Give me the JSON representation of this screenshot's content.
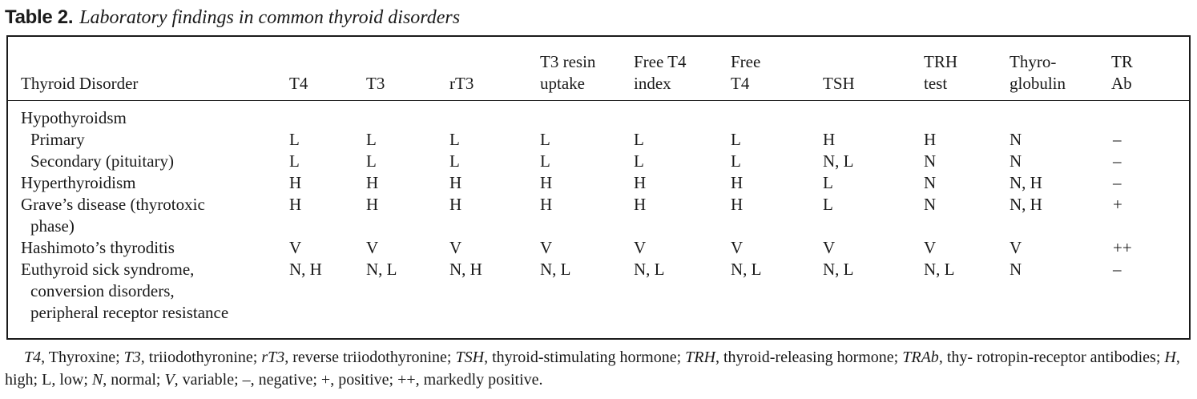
{
  "table": {
    "label": "Table 2.",
    "caption": "Laboratory findings in common thyroid disorders",
    "columns": [
      {
        "line1": "Thyroid Disorder",
        "line2": ""
      },
      {
        "line1": "T4",
        "line2": ""
      },
      {
        "line1": "T3",
        "line2": ""
      },
      {
        "line1": "rT3",
        "line2": ""
      },
      {
        "line1": "T3 resin",
        "line2": "uptake"
      },
      {
        "line1": "Free T4",
        "line2": "index"
      },
      {
        "line1": "Free",
        "line2": "T4"
      },
      {
        "line1": "TSH",
        "line2": ""
      },
      {
        "line1": "TRH",
        "line2": "test"
      },
      {
        "line1": "Thyro-",
        "line2": "globulin"
      },
      {
        "line1": "TR",
        "line2": "Ab"
      }
    ],
    "rows": [
      {
        "label": [
          "Hypothyroidsm"
        ],
        "values": [
          "",
          "",
          "",
          "",
          "",
          "",
          "",
          "",
          "",
          ""
        ]
      },
      {
        "label": [
          "Primary"
        ],
        "indent": true,
        "values": [
          "L",
          "L",
          "L",
          "L",
          "L",
          "L",
          "H",
          "H",
          "N",
          "–"
        ]
      },
      {
        "label": [
          "Secondary (pituitary)"
        ],
        "indent": true,
        "values": [
          "L",
          "L",
          "L",
          "L",
          "L",
          "L",
          "N, L",
          "N",
          "N",
          "–"
        ]
      },
      {
        "label": [
          "Hyperthyroidism"
        ],
        "values": [
          "H",
          "H",
          "H",
          "H",
          "H",
          "H",
          "L",
          "N",
          "N, H",
          "–"
        ]
      },
      {
        "label": [
          "Grave’s disease (thyrotoxic",
          "phase)"
        ],
        "values": [
          "H",
          "H",
          "H",
          "H",
          "H",
          "H",
          "L",
          "N",
          "N, H",
          "+"
        ]
      },
      {
        "label": [
          "Hashimoto’s thyroditis"
        ],
        "values": [
          "V",
          "V",
          "V",
          "V",
          "V",
          "V",
          "V",
          "V",
          "V",
          "++"
        ]
      },
      {
        "label": [
          "Euthyroid sick syndrome,",
          "conversion disorders,",
          "peripheral receptor resistance"
        ],
        "values": [
          "N, H",
          "N, L",
          "N, H",
          "N, L",
          "N, L",
          "N, L",
          "N, L",
          "N, L",
          "N",
          "–"
        ]
      }
    ]
  },
  "footnote": {
    "t4": "T4",
    "t4_def": ", Thyroxine; ",
    "t3": "T3",
    "t3_def": ", triiodothyronine; ",
    "rt3": "rT3",
    "rt3_def": ", reverse triiodothyronine; ",
    "tsh": "TSH",
    "tsh_def": ", thyroid-stimulating hormone; ",
    "trh": "TRH",
    "trh_def": ", thyroid-releasing hormone; ",
    "trab": "TRAb",
    "trab_def": ", thy- rotropin-receptor antibodies; ",
    "h": "H",
    "h_def": ", high; L, low; ",
    "n": "N",
    "n_def": ", normal; ",
    "v": "V",
    "v_def": ", variable; –, negative; +, positive; ++,  markedly positive."
  }
}
